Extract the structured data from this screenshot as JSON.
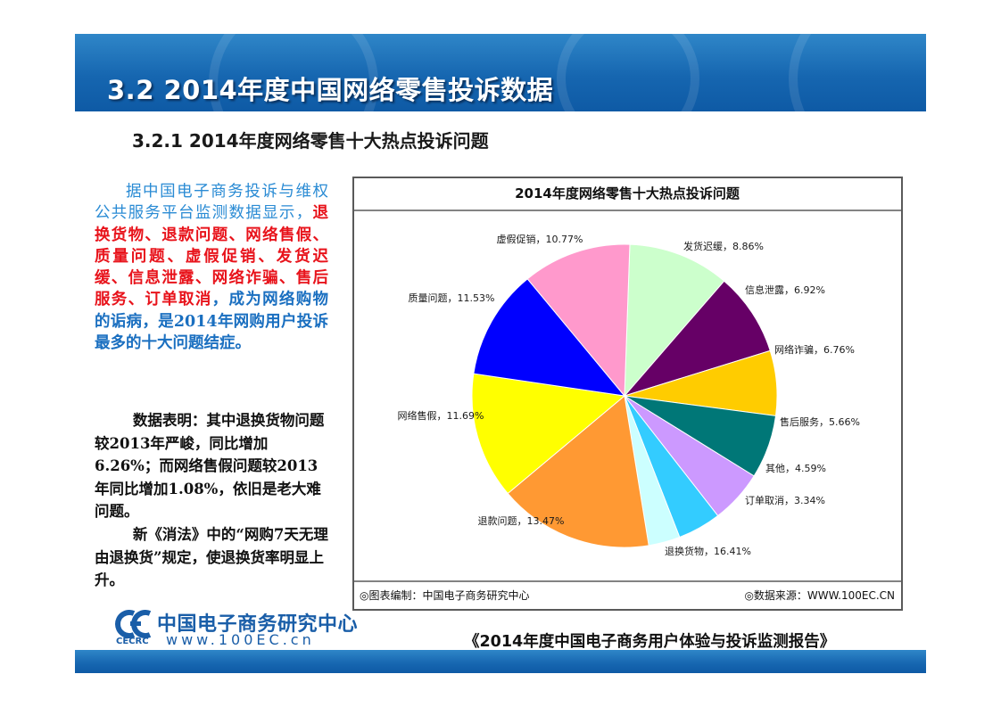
{
  "header": {
    "title": "3.2  2014年度中国网络零售投诉数据"
  },
  "subtitle": "3.2.1 2014年度网络零售十大热点投诉问题",
  "body": {
    "para1_intro": "据中国电子商务投诉与维权公共服务平台监测数据显示，",
    "para1_highlight": "退换货物、退款问题、网络售假、质量问题、虚假促销、发货迟缓、信息泄露、网络诈骗、售后服务、订单取消",
    "para1_tail": "，成为网络购物的诟病，是2014年网购用户投诉最多的十大问题结症。",
    "para2": "数据表明：其中退换货物问题较2013年严峻，同比增加6.26%；而网络售假问题较2013年同比增加1.08%，依旧是老大难问题。",
    "para3": "新《消法》中的“网购7天无理由退换货”规定，使退换货率明显上升。"
  },
  "chart_data": {
    "type": "pie",
    "title": "2014年度网络零售十大热点投诉问题",
    "slices": [
      {
        "label": "虚假促销",
        "value_label": "10.77%",
        "value": 10.77,
        "color": "#ccffcc"
      },
      {
        "label": "发货迟缓",
        "value_label": "8.86%",
        "value": 8.86,
        "color": "#660066"
      },
      {
        "label": "信息泄露",
        "value_label": "6.92%",
        "value": 6.92,
        "color": "#ffcc00"
      },
      {
        "label": "网络诈骗",
        "value_label": "6.76%",
        "value": 6.76,
        "color": "#007777"
      },
      {
        "label": "售后服务",
        "value_label": "5.66%",
        "value": 5.66,
        "color": "#cc99ff"
      },
      {
        "label": "其他",
        "value_label": "4.59%",
        "value": 4.59,
        "color": "#33ccff"
      },
      {
        "label": "订单取消",
        "value_label": "3.34%",
        "value": 3.34,
        "color": "#ccffff"
      },
      {
        "label": "退换货物",
        "value_label": "16.41%",
        "value": 16.41,
        "color": "#ff9933"
      },
      {
        "label": "退款问题",
        "value_label": "13.47%",
        "value": 13.47,
        "color": "#ffff00"
      },
      {
        "label": "网络售假",
        "value_label": "11.69%",
        "value": 11.69,
        "color": "#0000ff"
      },
      {
        "label": "质量问题",
        "value_label": "11.53%",
        "value": 11.53,
        "color": "#ff99cc"
      }
    ],
    "footer_left": "◎图表编制：中国电子商务研究中心",
    "footer_right": "◎数据来源：WWW.100EC.CN"
  },
  "logo": {
    "name": "中国电子商务研究中心",
    "url": "www.100EC.cn",
    "abbr": "CECRC"
  },
  "report_title": "《2014年度中国电子商务用户体验与投诉监测报告》"
}
